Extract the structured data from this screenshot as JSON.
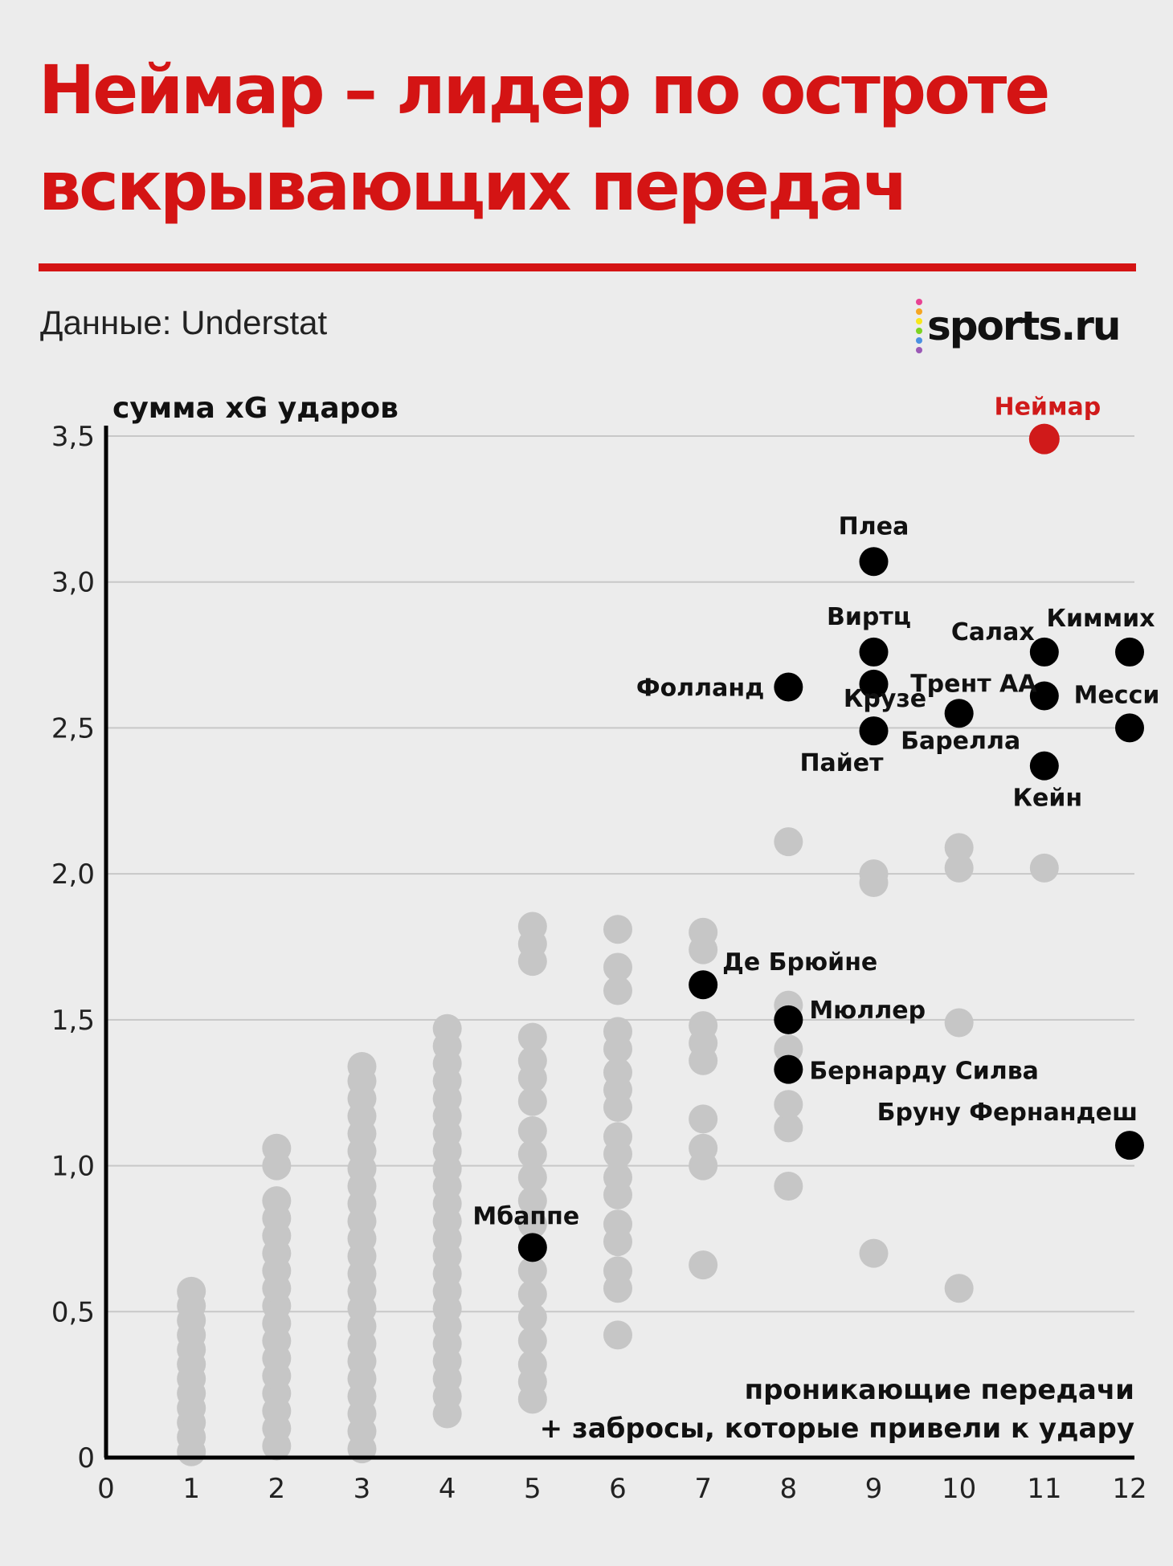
{
  "header": {
    "title": "Неймар – лидер по остроте вскрывающих передач",
    "source": "Данные: Understat",
    "logo_text": "sports.ru",
    "logo_dot_colors": [
      "#e84393",
      "#f5a623",
      "#f8e71c",
      "#7ed321",
      "#4a90e2",
      "#9b59b6"
    ]
  },
  "colors": {
    "title": "#d41414",
    "highlight": "#d01a1a",
    "labeled_point": "#000000",
    "background_point": "#c6c6c6",
    "gridline": "#c8c8c8",
    "axis": "#000000"
  },
  "chart_data": {
    "type": "scatter",
    "ylabel": "сумма xG ударов",
    "xlabel_lines": [
      "проникающие передачи",
      "+ забросы, которые привели к удару"
    ],
    "xlim": [
      0,
      12
    ],
    "ylim": [
      0,
      3.5
    ],
    "x_ticks": [
      0,
      1,
      2,
      3,
      4,
      5,
      6,
      7,
      8,
      9,
      10,
      11,
      12
    ],
    "y_ticks": [
      {
        "value": 0,
        "label": "0"
      },
      {
        "value": 0.5,
        "label": "0,5"
      },
      {
        "value": 1.0,
        "label": "1,0"
      },
      {
        "value": 1.5,
        "label": "1,5"
      },
      {
        "value": 2.0,
        "label": "2,0"
      },
      {
        "value": 2.5,
        "label": "2,5"
      },
      {
        "value": 3.0,
        "label": "3,0"
      },
      {
        "value": 3.5,
        "label": "3,5"
      }
    ],
    "grid": "horizontal",
    "highlight": {
      "name": "Неймар",
      "x": 11,
      "y": 3.49
    },
    "labeled_points": [
      {
        "name": "Плеа",
        "x": 9,
        "y": 3.07
      },
      {
        "name": "Виртц",
        "x": 9,
        "y": 2.76
      },
      {
        "name": "Крузе",
        "x": 9,
        "y": 2.65
      },
      {
        "name": "Пайет",
        "x": 9,
        "y": 2.49
      },
      {
        "name": "Фолланд",
        "x": 8,
        "y": 2.64
      },
      {
        "name": "Салах",
        "x": 11,
        "y": 2.76
      },
      {
        "name": "Трент АА",
        "x": 11,
        "y": 2.61
      },
      {
        "name": "Кейн",
        "x": 11,
        "y": 2.37
      },
      {
        "name": "Барелла",
        "x": 10,
        "y": 2.55
      },
      {
        "name": "Киммих",
        "x": 12,
        "y": 2.76
      },
      {
        "name": "Месси",
        "x": 12,
        "y": 2.5
      },
      {
        "name": "Де Брюйне",
        "x": 7,
        "y": 1.62
      },
      {
        "name": "Мюллер",
        "x": 8,
        "y": 1.5
      },
      {
        "name": "Бернарду Силва",
        "x": 8,
        "y": 1.33
      },
      {
        "name": "Бруну Фернандеш",
        "x": 12,
        "y": 1.07
      },
      {
        "name": "Мбаппе",
        "x": 5,
        "y": 0.72
      }
    ],
    "background_points": [
      {
        "x": 1,
        "y": [
          0.02,
          0.07,
          0.12,
          0.17,
          0.22,
          0.27,
          0.32,
          0.37,
          0.42,
          0.47,
          0.52,
          0.57
        ]
      },
      {
        "x": 2,
        "y": [
          0.04,
          0.1,
          0.16,
          0.22,
          0.28,
          0.34,
          0.4,
          0.46,
          0.52,
          0.58,
          0.64,
          0.7,
          0.76,
          0.82,
          0.88,
          1.0,
          1.06
        ]
      },
      {
        "x": 3,
        "y": [
          0.03,
          0.09,
          0.15,
          0.21,
          0.27,
          0.33,
          0.39,
          0.45,
          0.51,
          0.57,
          0.63,
          0.69,
          0.75,
          0.81,
          0.87,
          0.93,
          0.99,
          1.05,
          1.11,
          1.17,
          1.23,
          1.29,
          1.34
        ]
      },
      {
        "x": 4,
        "y": [
          0.15,
          0.21,
          0.27,
          0.33,
          0.39,
          0.45,
          0.51,
          0.57,
          0.63,
          0.69,
          0.75,
          0.81,
          0.87,
          0.93,
          0.99,
          1.05,
          1.11,
          1.17,
          1.23,
          1.29,
          1.35,
          1.41,
          1.47
        ]
      },
      {
        "x": 5,
        "y": [
          0.2,
          0.26,
          0.32,
          0.4,
          0.48,
          0.56,
          0.64,
          0.8,
          0.88,
          0.96,
          1.04,
          1.12,
          1.22,
          1.3,
          1.36,
          1.44,
          1.7,
          1.76,
          1.82
        ]
      },
      {
        "x": 6,
        "y": [
          0.42,
          0.58,
          0.64,
          0.74,
          0.8,
          0.9,
          0.96,
          1.04,
          1.1,
          1.2,
          1.26,
          1.32,
          1.4,
          1.46,
          1.6,
          1.68,
          1.81
        ]
      },
      {
        "x": 7,
        "y": [
          0.66,
          1.0,
          1.06,
          1.16,
          1.36,
          1.42,
          1.48,
          1.74,
          1.8
        ]
      },
      {
        "x": 8,
        "y": [
          0.93,
          1.13,
          1.21,
          1.4,
          1.55,
          2.11
        ]
      },
      {
        "x": 9,
        "y": [
          0.7,
          1.97,
          2.0
        ]
      },
      {
        "x": 10,
        "y": [
          0.58,
          1.49,
          2.02,
          2.09
        ]
      },
      {
        "x": 11,
        "y": [
          2.02
        ]
      }
    ]
  }
}
